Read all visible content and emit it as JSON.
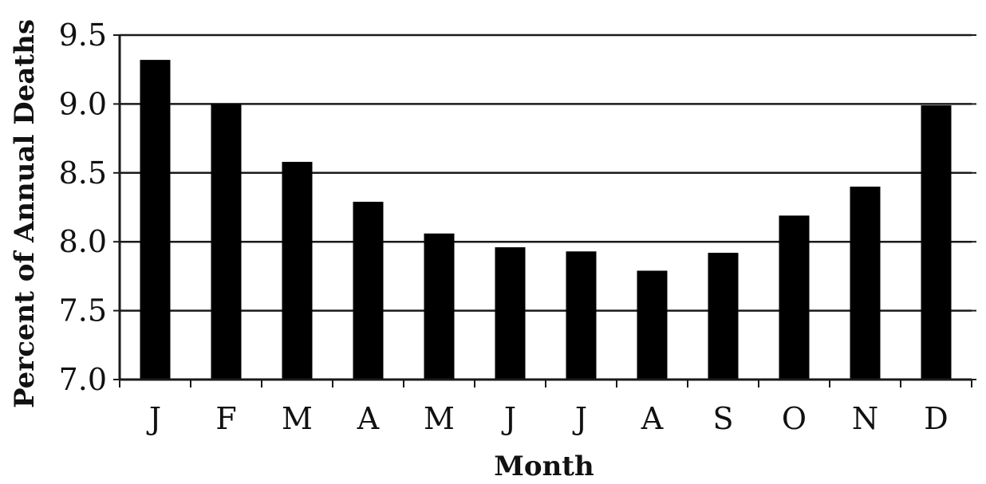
{
  "chart_data": {
    "type": "bar",
    "categories": [
      "J",
      "F",
      "M",
      "A",
      "M",
      "J",
      "J",
      "A",
      "S",
      "O",
      "N",
      "D"
    ],
    "values": [
      9.32,
      9.0,
      8.58,
      8.29,
      8.06,
      7.96,
      7.93,
      7.79,
      7.92,
      8.19,
      8.4,
      8.99
    ],
    "xlabel": "Month",
    "ylabel": "Percent of Annual Deaths",
    "ylim": [
      7.0,
      9.5
    ],
    "yticks": [
      "7.0",
      "7.5",
      "8.0",
      "8.5",
      "9.0",
      "9.5"
    ],
    "grid": true,
    "legend": "none",
    "colors": {
      "bar": "#000000",
      "grid": "#1a1a1a",
      "axis": "#1a1a1a",
      "background": "#ffffff"
    }
  }
}
